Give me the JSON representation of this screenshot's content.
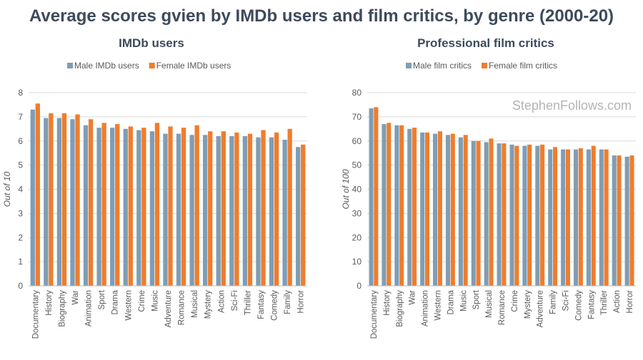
{
  "page": {
    "title": "Average scores gvien by IMDb users and film critics, by genre (2000-20)",
    "watermark": "StephenFollows.com"
  },
  "colors": {
    "male": "#7f9db5",
    "female": "#ef7d2d",
    "title": "#3d4a5c",
    "axis_text": "#595959",
    "grid": "#d9d9d9"
  },
  "chart_data": [
    {
      "type": "bar",
      "title": "IMDb users",
      "ylabel": "Out of 10",
      "xlabel": "",
      "ylim": [
        0,
        8
      ],
      "yticks": [
        0,
        1,
        2,
        3,
        4,
        5,
        6,
        7,
        8
      ],
      "legend_position": "top",
      "categories": [
        "Documentary",
        "History",
        "Biography",
        "War",
        "Animation",
        "Sport",
        "Drama",
        "Western",
        "Crime",
        "Music",
        "Adventure",
        "Romance",
        "Musical",
        "Mystery",
        "Action",
        "Sci-Fi",
        "Thriller",
        "Fantasy",
        "Comedy",
        "Family",
        "Horror"
      ],
      "series": [
        {
          "name": "Male IMDb users",
          "values": [
            7.3,
            6.95,
            6.95,
            6.9,
            6.65,
            6.55,
            6.55,
            6.5,
            6.45,
            6.4,
            6.3,
            6.3,
            6.25,
            6.25,
            6.2,
            6.2,
            6.2,
            6.15,
            6.15,
            6.05,
            5.75
          ]
        },
        {
          "name": "Female IMDb users",
          "values": [
            7.55,
            7.15,
            7.15,
            7.1,
            6.9,
            6.75,
            6.7,
            6.6,
            6.55,
            6.75,
            6.6,
            6.55,
            6.65,
            6.4,
            6.4,
            6.35,
            6.3,
            6.45,
            6.35,
            6.5,
            5.85
          ]
        }
      ]
    },
    {
      "type": "bar",
      "title": "Professional film critics",
      "ylabel": "Out of 100",
      "xlabel": "",
      "ylim": [
        0,
        80
      ],
      "yticks": [
        0,
        10,
        20,
        30,
        40,
        50,
        60,
        70,
        80
      ],
      "legend_position": "top",
      "categories": [
        "Documentary",
        "History",
        "Biography",
        "War",
        "Animation",
        "Western",
        "Drama",
        "Music",
        "Sport",
        "Musical",
        "Romance",
        "Crime",
        "Mystery",
        "Adventure",
        "Family",
        "Sci-Fi",
        "Comedy",
        "Fantasy",
        "Thriller",
        "Action",
        "Horror"
      ],
      "series": [
        {
          "name": "Male film critics",
          "values": [
            73.5,
            67,
            66.5,
            65,
            63.5,
            63,
            62.5,
            61.5,
            60,
            59.5,
            59,
            58.5,
            58,
            58,
            56.5,
            56.5,
            56.5,
            56.5,
            56.5,
            54,
            53.5
          ]
        },
        {
          "name": "Female film critics",
          "values": [
            74,
            67.5,
            66.5,
            65.5,
            63.5,
            64,
            63,
            62.5,
            60,
            61,
            59,
            58,
            58.5,
            58.5,
            57.5,
            56.5,
            57,
            58,
            56.5,
            54,
            54
          ]
        }
      ]
    }
  ]
}
